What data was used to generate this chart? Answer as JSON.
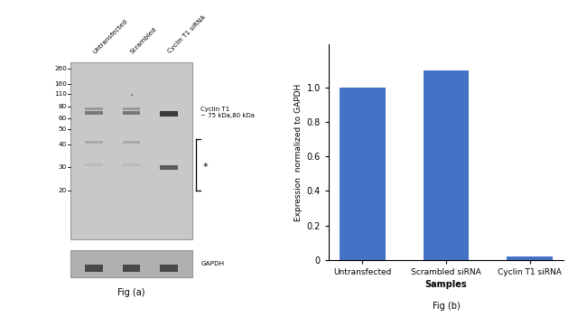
{
  "bar_categories": [
    "Untransfected",
    "Scrambled siRNA",
    "Cyclin T1 siRNA"
  ],
  "bar_values": [
    1.0,
    1.1,
    0.02
  ],
  "bar_color": "#4472C4",
  "ylabel": "Expression  normalized to GAPDH",
  "xlabel": "Samples",
  "ylim": [
    0,
    1.25
  ],
  "yticks": [
    0,
    0.2,
    0.4,
    0.6,
    0.8,
    1.0
  ],
  "fig_label_left": "Fig (a)",
  "fig_label_right": "Fig (b)",
  "wb_title_labels": [
    "Untransfected",
    "Scrambled",
    "Cyclin T1 siRNA"
  ],
  "wb_mw_labels": [
    "260",
    "160",
    "110",
    "80",
    "60",
    "50",
    "40",
    "30",
    "20"
  ],
  "wb_annotation1": "Cyclin T1\n~ 75 kDa,80 kDa",
  "wb_annotation2": "GAPDH",
  "background_color": "#ffffff",
  "gel_bg": "#c8c8c8",
  "gapdh_bg": "#b0b0b0"
}
